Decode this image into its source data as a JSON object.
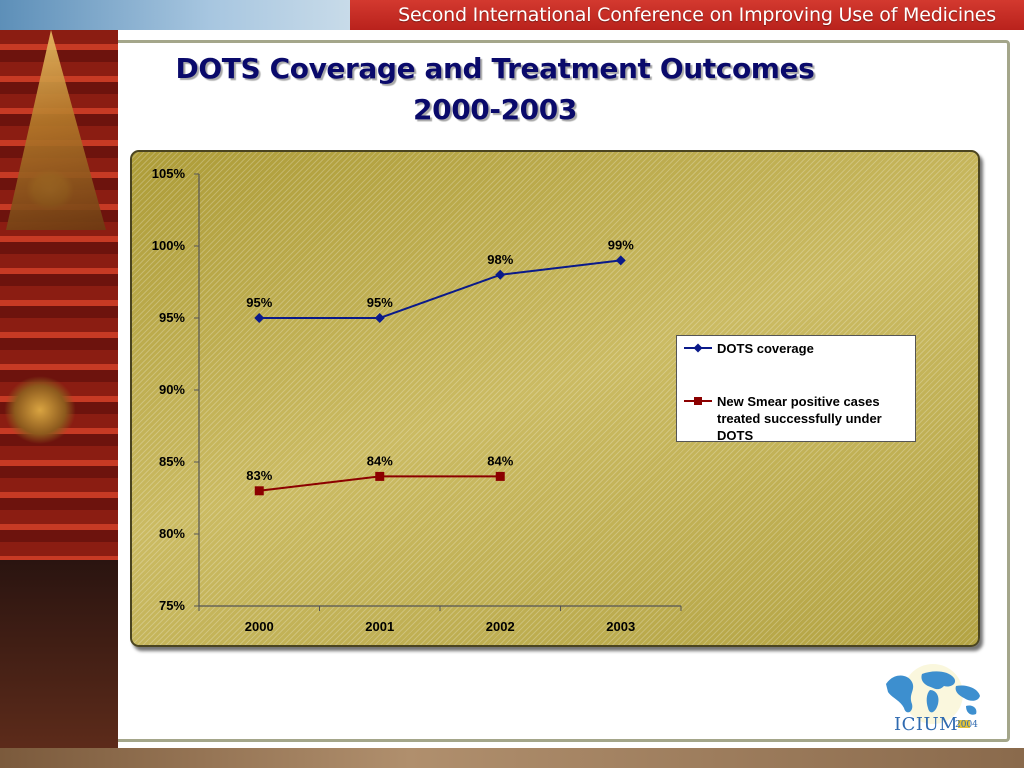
{
  "header": {
    "banner_text": "Second International Conference on Improving Use of Medicines"
  },
  "slide": {
    "title_line1": "DOTS Coverage and Treatment Outcomes",
    "title_line2": "2000-2003"
  },
  "chart_data": {
    "type": "line",
    "categories": [
      "2000",
      "2001",
      "2002",
      "2003"
    ],
    "series": [
      {
        "name": "DOTS coverage",
        "values": [
          95,
          95,
          98,
          99
        ],
        "labels": [
          "95%",
          "95%",
          "98%",
          "99%"
        ],
        "color": "#0a1a8a",
        "marker": "diamond"
      },
      {
        "name": "New Smear positive cases treated successfully under DOTS",
        "values": [
          83,
          84,
          84,
          null
        ],
        "labels": [
          "83%",
          "84%",
          "84%",
          null
        ],
        "color": "#8b0000",
        "marker": "square"
      }
    ],
    "y_ticks": [
      "75%",
      "80%",
      "85%",
      "90%",
      "95%",
      "100%",
      "105%"
    ],
    "ylim": [
      75,
      105
    ],
    "ystep": 5,
    "title": "",
    "xlabel": "",
    "ylabel": "",
    "grid": false,
    "legend_position": "right"
  },
  "logo": {
    "text": "ICIUM",
    "year": "2004",
    "icon": "globe-map-icon"
  }
}
